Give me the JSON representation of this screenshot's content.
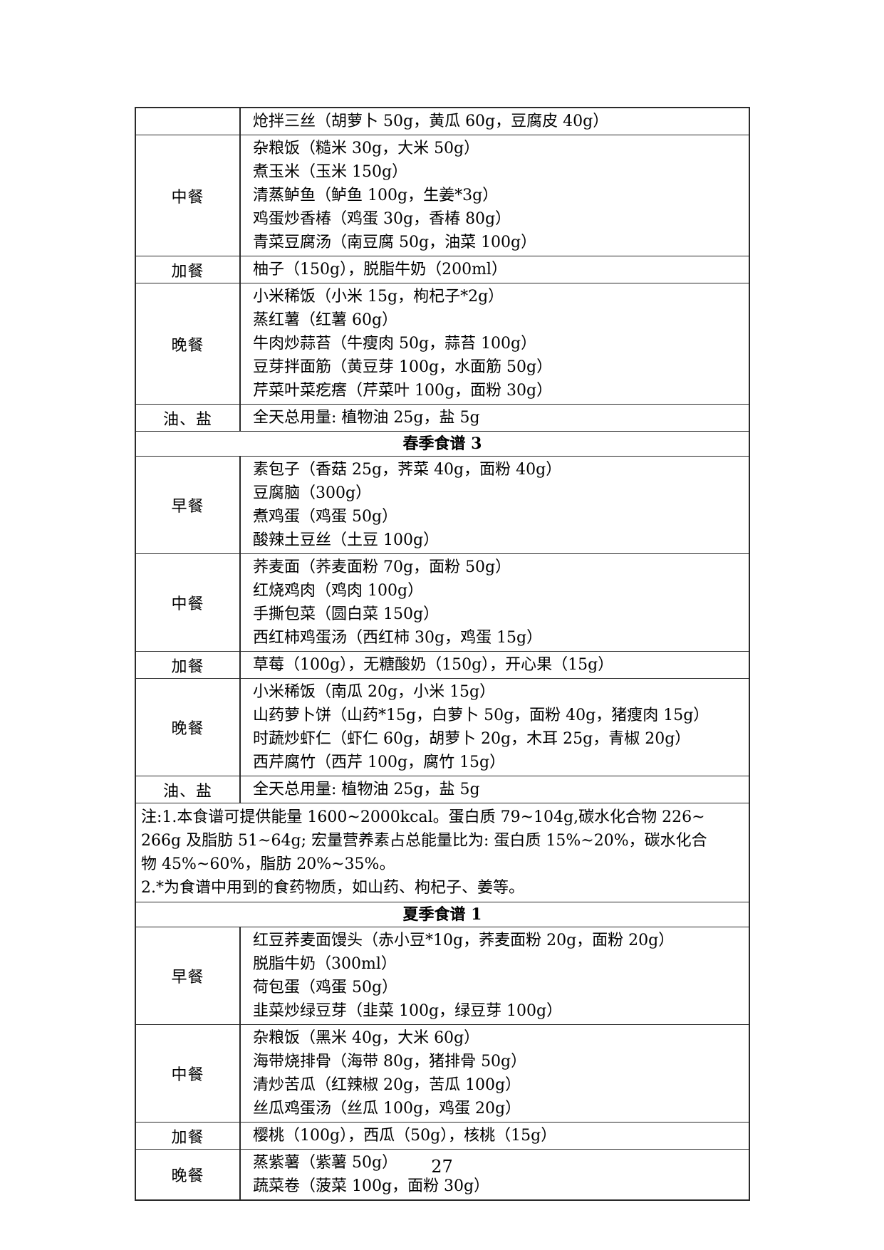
{
  "page_number": "27",
  "table": {
    "sections": [
      {
        "type": "rows",
        "rows": [
          {
            "label": "",
            "dishes": [
              "炝拌三丝（胡萝卜 50g，黄瓜 60g，豆腐皮 40g）"
            ]
          },
          {
            "label": "中餐",
            "dishes": [
              "杂粮饭（糙米 30g，大米 50g）",
              "煮玉米（玉米 150g）",
              "清蒸鲈鱼（鲈鱼 100g，生姜*3g）",
              "鸡蛋炒香椿（鸡蛋 30g，香椿 80g）",
              "青菜豆腐汤（南豆腐 50g，油菜 100g）"
            ]
          },
          {
            "label": "加餐",
            "dishes": [
              "柚子（150g），脱脂牛奶（200ml）"
            ]
          },
          {
            "label": "晚餐",
            "dishes": [
              "小米稀饭（小米 15g，枸杞子*2g）",
              "蒸红薯（红薯 60g）",
              "牛肉炒蒜苔（牛瘦肉 50g，蒜苔 100g）",
              "豆芽拌面筋（黄豆芽 100g，水面筋 50g）",
              "芹菜叶菜疙瘩（芹菜叶 100g，面粉 30g）"
            ]
          },
          {
            "label": "油、盐",
            "dishes": [
              "全天总用量: 植物油 25g，盐 5g"
            ]
          }
        ]
      },
      {
        "type": "header",
        "title": "春季食谱 3"
      },
      {
        "type": "rows",
        "rows": [
          {
            "label": "早餐",
            "dishes": [
              "素包子（香菇 25g，荠菜 40g，面粉 40g）",
              "豆腐脑（300g）",
              "煮鸡蛋（鸡蛋 50g）",
              "酸辣土豆丝（土豆 100g）"
            ]
          },
          {
            "label": "中餐",
            "dishes": [
              "荞麦面（荞麦面粉 70g，面粉 50g）",
              "红烧鸡肉（鸡肉 100g）",
              "手撕包菜（圆白菜 150g）",
              "西红柿鸡蛋汤（西红柿 30g，鸡蛋 15g）"
            ]
          },
          {
            "label": "加餐",
            "dishes": [
              "草莓（100g），无糖酸奶（150g），开心果（15g）"
            ]
          },
          {
            "label": "晚餐",
            "dishes": [
              "小米稀饭（南瓜 20g，小米 15g）",
              "山药萝卜饼（山药*15g，白萝卜 50g，面粉 40g，猪瘦肉 15g）",
              "时蔬炒虾仁（虾仁 60g，胡萝卜 20g，木耳 25g，青椒 20g）",
              "西芹腐竹（西芹 100g，腐竹 15g）"
            ]
          },
          {
            "label": "油、盐",
            "dishes": [
              "全天总用量: 植物油 25g，盐 5g"
            ]
          }
        ]
      },
      {
        "type": "note",
        "lines": [
          "注:1.本食谱可提供能量 1600~2000kcal。蛋白质 79~104g,碳水化合物 226~",
          "266g 及脂肪 51~64g; 宏量营养素占总能量比为: 蛋白质 15%~20%，碳水化合",
          "物 45%~60%，脂肪 20%~35%。",
          "2.*为食谱中用到的食药物质，如山药、枸杞子、姜等。"
        ]
      },
      {
        "type": "header",
        "title": "夏季食谱 1"
      },
      {
        "type": "rows",
        "rows": [
          {
            "label": "早餐",
            "dishes": [
              "红豆荞麦面馒头（赤小豆*10g，荞麦面粉 20g，面粉 20g）",
              "脱脂牛奶（300ml）",
              "荷包蛋（鸡蛋 50g）",
              "韭菜炒绿豆芽（韭菜 100g，绿豆芽 100g）"
            ]
          },
          {
            "label": "中餐",
            "dishes": [
              "杂粮饭（黑米 40g，大米 60g）",
              "海带烧排骨（海带 80g，猪排骨 50g）",
              "清炒苦瓜（红辣椒 20g，苦瓜 100g）",
              "丝瓜鸡蛋汤（丝瓜 100g，鸡蛋 20g）"
            ]
          },
          {
            "label": "加餐",
            "dishes": [
              "樱桃（100g），西瓜（50g），核桃（15g）"
            ]
          },
          {
            "label": "晚餐",
            "dishes": [
              "蒸紫薯（紫薯 50g）",
              "蔬菜卷（菠菜 100g，面粉 30g）"
            ]
          }
        ]
      }
    ]
  }
}
